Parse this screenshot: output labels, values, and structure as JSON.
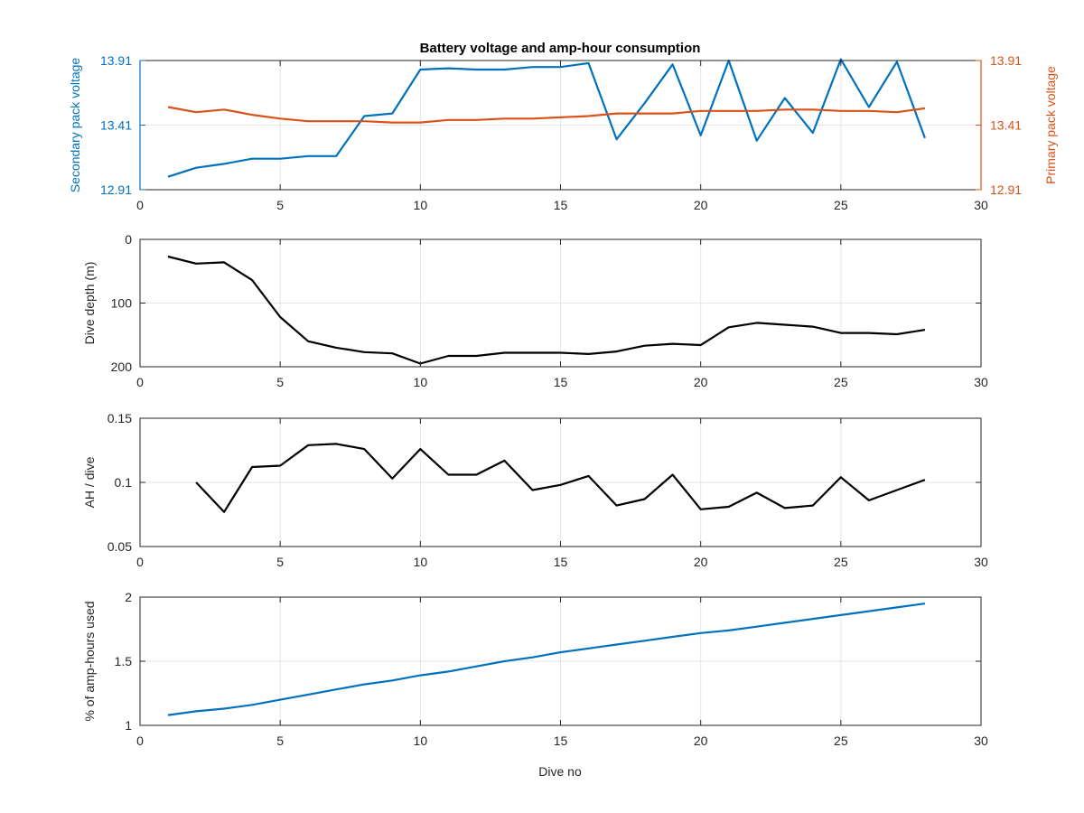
{
  "figure": {
    "title": "Battery voltage and amp-hour consumption",
    "xlabel": "Dive no"
  },
  "colors": {
    "blue": "#0072BD",
    "orange": "#D95319",
    "black": "#000000",
    "grid": "#e6e6e6"
  },
  "chart_data": [
    {
      "type": "line",
      "title": "Battery voltage and amp-hour consumption",
      "xlabel": "",
      "ylabel": "Secondary pack voltage",
      "ylabel_right": "Primary pack voltage",
      "xlim": [
        0,
        30
      ],
      "ylim": [
        12.91,
        13.91
      ],
      "ylim_right": [
        12.91,
        13.91
      ],
      "xticks": [
        "0",
        "5",
        "10",
        "15",
        "20",
        "25",
        "30"
      ],
      "yticks": [
        "12.91",
        "13.41",
        "13.91"
      ],
      "yticks_right": [
        "12.91",
        "13.41",
        "13.91"
      ],
      "grid": true,
      "series": [
        {
          "axis": "left",
          "color": "#0072BD",
          "x": [
            1,
            2,
            3,
            4,
            5,
            6,
            7,
            8,
            9,
            10,
            11,
            12,
            13,
            14,
            15,
            16,
            17,
            18,
            19,
            20,
            21,
            22,
            23,
            24,
            25,
            26,
            27,
            28
          ],
          "values": [
            13.01,
            13.08,
            13.11,
            13.15,
            13.15,
            13.17,
            13.17,
            13.48,
            13.5,
            13.84,
            13.85,
            13.84,
            13.84,
            13.86,
            13.86,
            13.89,
            13.3,
            13.58,
            13.88,
            13.33,
            13.91,
            13.29,
            13.62,
            13.35,
            13.92,
            13.55,
            13.9,
            13.31
          ]
        },
        {
          "axis": "right",
          "color": "#D95319",
          "x": [
            1,
            2,
            3,
            4,
            5,
            6,
            7,
            8,
            9,
            10,
            11,
            12,
            13,
            14,
            15,
            16,
            17,
            18,
            19,
            20,
            21,
            22,
            23,
            24,
            25,
            26,
            27,
            28
          ],
          "values": [
            13.55,
            13.51,
            13.53,
            13.49,
            13.46,
            13.44,
            13.44,
            13.44,
            13.43,
            13.43,
            13.45,
            13.45,
            13.46,
            13.46,
            13.47,
            13.48,
            13.5,
            13.5,
            13.5,
            13.52,
            13.52,
            13.52,
            13.53,
            13.53,
            13.52,
            13.52,
            13.51,
            13.54
          ]
        }
      ]
    },
    {
      "type": "line",
      "xlabel": "",
      "ylabel": "Dive depth (m)",
      "xlim": [
        0,
        30
      ],
      "ylim": [
        0,
        200
      ],
      "y_reversed": true,
      "xticks": [
        "0",
        "5",
        "10",
        "15",
        "20",
        "25",
        "30"
      ],
      "yticks": [
        "0",
        "100",
        "200"
      ],
      "grid": true,
      "series": [
        {
          "color": "#000000",
          "x": [
            1,
            2,
            3,
            4,
            5,
            6,
            7,
            8,
            9,
            10,
            11,
            12,
            13,
            14,
            15,
            16,
            17,
            18,
            19,
            20,
            21,
            22,
            23,
            24,
            25,
            26,
            27,
            28
          ],
          "values": [
            27,
            38,
            36,
            64,
            122,
            160,
            170,
            177,
            179,
            195,
            183,
            183,
            178,
            178,
            178,
            180,
            176,
            167,
            164,
            166,
            138,
            131,
            134,
            137,
            147,
            147,
            149,
            142
          ]
        }
      ]
    },
    {
      "type": "line",
      "xlabel": "",
      "ylabel": "AH / dive",
      "xlim": [
        0,
        30
      ],
      "ylim": [
        0.05,
        0.15
      ],
      "xticks": [
        "0",
        "5",
        "10",
        "15",
        "20",
        "25",
        "30"
      ],
      "yticks": [
        "0.05",
        "0.1",
        "0.15"
      ],
      "grid": true,
      "series": [
        {
          "color": "#000000",
          "x": [
            2,
            3,
            4,
            5,
            6,
            7,
            8,
            9,
            10,
            11,
            12,
            13,
            14,
            15,
            16,
            17,
            18,
            19,
            20,
            21,
            22,
            23,
            24,
            25,
            26,
            27,
            28
          ],
          "values": [
            0.1,
            0.077,
            0.112,
            0.113,
            0.129,
            0.13,
            0.126,
            0.103,
            0.126,
            0.106,
            0.106,
            0.117,
            0.094,
            0.098,
            0.105,
            0.082,
            0.087,
            0.106,
            0.079,
            0.081,
            0.092,
            0.08,
            0.082,
            0.104,
            0.086,
            0.094,
            0.102
          ]
        }
      ]
    },
    {
      "type": "line",
      "xlabel": "Dive no",
      "ylabel": "% of amp-hours used",
      "xlim": [
        0,
        30
      ],
      "ylim": [
        1,
        2
      ],
      "xticks": [
        "0",
        "5",
        "10",
        "15",
        "20",
        "25",
        "30"
      ],
      "yticks": [
        "1",
        "1.5",
        "2"
      ],
      "grid": true,
      "series": [
        {
          "color": "#0072BD",
          "x": [
            1,
            2,
            3,
            4,
            5,
            6,
            7,
            8,
            9,
            10,
            11,
            12,
            13,
            14,
            15,
            16,
            17,
            18,
            19,
            20,
            21,
            22,
            23,
            24,
            25,
            26,
            27,
            28
          ],
          "values": [
            1.08,
            1.11,
            1.13,
            1.16,
            1.2,
            1.24,
            1.28,
            1.32,
            1.35,
            1.39,
            1.42,
            1.46,
            1.5,
            1.53,
            1.57,
            1.6,
            1.63,
            1.66,
            1.69,
            1.72,
            1.74,
            1.77,
            1.8,
            1.83,
            1.86,
            1.89,
            1.92,
            1.95
          ]
        }
      ]
    }
  ]
}
